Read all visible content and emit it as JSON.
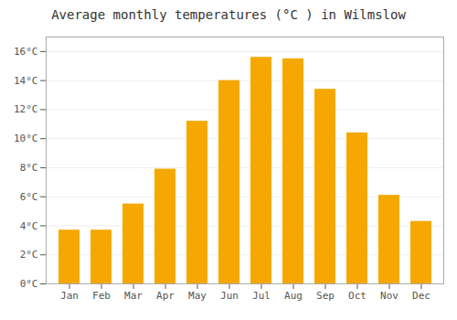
{
  "chart_data": {
    "type": "bar",
    "title": "Average monthly temperatures (°C ) in Wilmslow",
    "categories": [
      "Jan",
      "Feb",
      "Mar",
      "Apr",
      "May",
      "Jun",
      "Jul",
      "Aug",
      "Sep",
      "Oct",
      "Nov",
      "Dec"
    ],
    "values": [
      3.7,
      3.7,
      5.5,
      7.9,
      11.2,
      14.0,
      15.6,
      15.5,
      13.4,
      10.4,
      6.1,
      4.3
    ],
    "color": "#F5A800",
    "ylim": [
      0,
      17.0
    ],
    "yticks": [
      {
        "value": 0,
        "label": "0°C"
      },
      {
        "value": 2,
        "label": "2°C"
      },
      {
        "value": 4,
        "label": "4°C"
      },
      {
        "value": 6,
        "label": "6°C"
      },
      {
        "value": 8,
        "label": "8°C"
      },
      {
        "value": 10,
        "label": "10°C"
      },
      {
        "value": 12,
        "label": "12°C"
      },
      {
        "value": 14,
        "label": "14°C"
      },
      {
        "value": 16,
        "label": "16°C"
      }
    ],
    "grid": true
  }
}
